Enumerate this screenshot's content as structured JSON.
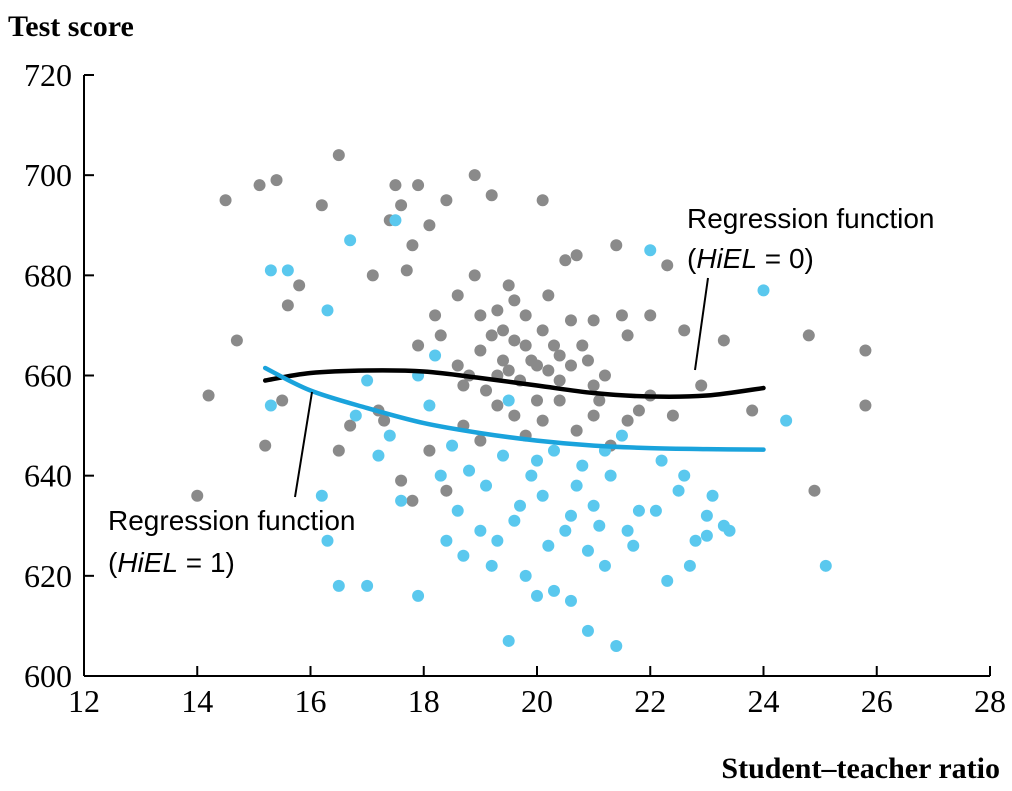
{
  "chart_data": {
    "type": "scatter",
    "ylabel": "Test score",
    "xlabel": "Student–teacher ratio",
    "xlim": [
      12,
      28
    ],
    "ylim": [
      600,
      720
    ],
    "xticks": [
      12,
      14,
      16,
      18,
      20,
      22,
      24,
      26,
      28
    ],
    "yticks": [
      600,
      620,
      640,
      660,
      680,
      700,
      720
    ],
    "colors": {
      "hiel0": "#8a8a8a",
      "hiel1": "#5ac8ee",
      "line0": "#000000",
      "line1": "#1aa3dc"
    },
    "series": [
      {
        "name": "HiEL = 0",
        "color": "#8a8a8a",
        "points": [
          [
            14.2,
            656
          ],
          [
            14.5,
            695
          ],
          [
            14.7,
            667
          ],
          [
            15.1,
            698
          ],
          [
            15.4,
            699
          ],
          [
            15.6,
            674
          ],
          [
            15.8,
            678
          ],
          [
            16.2,
            694
          ],
          [
            16.5,
            704
          ],
          [
            16.7,
            650
          ],
          [
            17.1,
            680
          ],
          [
            17.2,
            653
          ],
          [
            17.4,
            691
          ],
          [
            17.5,
            698
          ],
          [
            17.6,
            694
          ],
          [
            17.7,
            681
          ],
          [
            17.8,
            686
          ],
          [
            17.9,
            698
          ],
          [
            17.9,
            666
          ],
          [
            18.1,
            690
          ],
          [
            18.2,
            672
          ],
          [
            18.3,
            668
          ],
          [
            18.4,
            695
          ],
          [
            18.6,
            676
          ],
          [
            18.6,
            662
          ],
          [
            18.7,
            658
          ],
          [
            18.8,
            660
          ],
          [
            18.9,
            680
          ],
          [
            18.9,
            700
          ],
          [
            19.0,
            672
          ],
          [
            19.0,
            665
          ],
          [
            19.1,
            657
          ],
          [
            19.2,
            696
          ],
          [
            19.2,
            668
          ],
          [
            19.3,
            660
          ],
          [
            19.3,
            673
          ],
          [
            19.4,
            669
          ],
          [
            19.4,
            663
          ],
          [
            19.5,
            678
          ],
          [
            19.5,
            661
          ],
          [
            19.6,
            675
          ],
          [
            19.6,
            667
          ],
          [
            19.7,
            659
          ],
          [
            19.8,
            666
          ],
          [
            19.8,
            672
          ],
          [
            19.9,
            663
          ],
          [
            20.0,
            662
          ],
          [
            20.0,
            655
          ],
          [
            20.1,
            695
          ],
          [
            20.1,
            669
          ],
          [
            20.2,
            676
          ],
          [
            20.2,
            661
          ],
          [
            20.3,
            666
          ],
          [
            20.4,
            664
          ],
          [
            20.4,
            659
          ],
          [
            20.5,
            683
          ],
          [
            20.6,
            671
          ],
          [
            20.6,
            662
          ],
          [
            20.7,
            684
          ],
          [
            20.8,
            666
          ],
          [
            20.9,
            663
          ],
          [
            21.0,
            671
          ],
          [
            21.0,
            658
          ],
          [
            21.1,
            655
          ],
          [
            21.2,
            660
          ],
          [
            21.4,
            686
          ],
          [
            21.5,
            672
          ],
          [
            21.6,
            668
          ],
          [
            21.8,
            653
          ],
          [
            22.0,
            672
          ],
          [
            22.3,
            682
          ],
          [
            22.6,
            669
          ],
          [
            22.9,
            658
          ],
          [
            23.3,
            667
          ],
          [
            24.8,
            668
          ],
          [
            25.8,
            665
          ],
          [
            25.8,
            654
          ],
          [
            14.0,
            636
          ],
          [
            15.2,
            646
          ],
          [
            15.5,
            655
          ],
          [
            16.5,
            645
          ],
          [
            17.3,
            651
          ],
          [
            17.6,
            639
          ],
          [
            17.8,
            635
          ],
          [
            18.1,
            645
          ],
          [
            18.4,
            637
          ],
          [
            18.7,
            650
          ],
          [
            19.0,
            647
          ],
          [
            19.3,
            654
          ],
          [
            19.6,
            652
          ],
          [
            19.8,
            648
          ],
          [
            20.1,
            651
          ],
          [
            20.4,
            655
          ],
          [
            20.7,
            649
          ],
          [
            21.0,
            652
          ],
          [
            21.3,
            646
          ],
          [
            21.6,
            651
          ],
          [
            22.0,
            656
          ],
          [
            22.4,
            652
          ],
          [
            24.9,
            637
          ],
          [
            23.8,
            653
          ]
        ]
      },
      {
        "name": "HiEL = 1",
        "color": "#5ac8ee",
        "points": [
          [
            15.3,
            681
          ],
          [
            15.6,
            681
          ],
          [
            16.3,
            673
          ],
          [
            16.7,
            687
          ],
          [
            17.0,
            659
          ],
          [
            17.5,
            691
          ],
          [
            22.0,
            685
          ],
          [
            24.0,
            677
          ],
          [
            15.3,
            654
          ],
          [
            16.8,
            652
          ],
          [
            17.4,
            648
          ],
          [
            17.9,
            660
          ],
          [
            18.2,
            664
          ],
          [
            18.5,
            646
          ],
          [
            18.8,
            641
          ],
          [
            19.1,
            638
          ],
          [
            19.4,
            644
          ],
          [
            19.6,
            631
          ],
          [
            19.9,
            640
          ],
          [
            20.1,
            636
          ],
          [
            20.3,
            645
          ],
          [
            20.6,
            632
          ],
          [
            20.8,
            642
          ],
          [
            21.0,
            634
          ],
          [
            21.3,
            640
          ],
          [
            21.5,
            648
          ],
          [
            21.8,
            633
          ],
          [
            22.2,
            643
          ],
          [
            22.5,
            637
          ],
          [
            23.0,
            632
          ],
          [
            23.3,
            630
          ],
          [
            24.4,
            651
          ],
          [
            16.3,
            627
          ],
          [
            16.5,
            618
          ],
          [
            17.0,
            618
          ],
          [
            17.9,
            616
          ],
          [
            18.4,
            627
          ],
          [
            18.7,
            624
          ],
          [
            19.2,
            622
          ],
          [
            19.5,
            607
          ],
          [
            19.8,
            620
          ],
          [
            20.0,
            616
          ],
          [
            20.3,
            617
          ],
          [
            20.6,
            615
          ],
          [
            20.9,
            609
          ],
          [
            21.2,
            622
          ],
          [
            21.4,
            606
          ],
          [
            21.7,
            626
          ],
          [
            22.3,
            619
          ],
          [
            22.7,
            622
          ],
          [
            23.0,
            628
          ],
          [
            25.1,
            622
          ],
          [
            16.2,
            636
          ],
          [
            17.2,
            644
          ],
          [
            17.6,
            635
          ],
          [
            18.3,
            640
          ],
          [
            18.6,
            633
          ],
          [
            19.0,
            629
          ],
          [
            19.3,
            627
          ],
          [
            19.7,
            634
          ],
          [
            20.2,
            626
          ],
          [
            20.5,
            629
          ],
          [
            20.9,
            625
          ],
          [
            21.1,
            630
          ],
          [
            21.6,
            629
          ],
          [
            22.1,
            633
          ],
          [
            22.8,
            627
          ],
          [
            23.4,
            629
          ],
          [
            18.1,
            654
          ],
          [
            19.5,
            655
          ],
          [
            20.0,
            643
          ],
          [
            20.7,
            638
          ],
          [
            21.2,
            645
          ],
          [
            22.6,
            640
          ],
          [
            23.1,
            636
          ]
        ]
      }
    ],
    "lines": [
      {
        "name": "HiEL = 0",
        "color": "#000000",
        "points": [
          [
            15.2,
            659
          ],
          [
            16.0,
            660.5
          ],
          [
            17.0,
            661
          ],
          [
            18.0,
            660.8
          ],
          [
            19.0,
            659.5
          ],
          [
            20.0,
            658
          ],
          [
            21.0,
            656.5
          ],
          [
            22.0,
            655.8
          ],
          [
            23.0,
            656
          ],
          [
            24.0,
            657.5
          ]
        ]
      },
      {
        "name": "HiEL = 1",
        "color": "#1aa3dc",
        "points": [
          [
            15.2,
            661.5
          ],
          [
            16.0,
            657
          ],
          [
            17.0,
            653.5
          ],
          [
            18.0,
            650.5
          ],
          [
            19.0,
            648.5
          ],
          [
            20.0,
            647
          ],
          [
            21.0,
            646
          ],
          [
            22.0,
            645.5
          ],
          [
            23.0,
            645.3
          ],
          [
            24.0,
            645.2
          ]
        ]
      }
    ],
    "annotations": [
      {
        "line1": "Regression function",
        "pre": "(",
        "var": "HiEL",
        "post": " = 0)"
      },
      {
        "line1": "Regression function",
        "pre": "(",
        "var": "HiEL",
        "post": " = 1)"
      }
    ]
  }
}
